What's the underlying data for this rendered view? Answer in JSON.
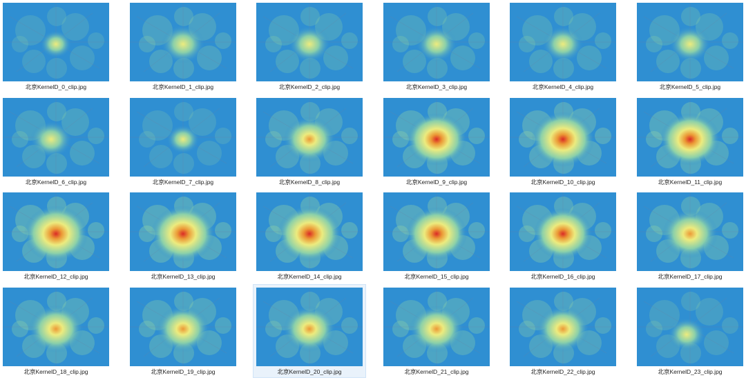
{
  "files": [
    {
      "name": "北京KernelD_0_clip.jpg",
      "heat": 0.15
    },
    {
      "name": "北京KernelD_1_clip.jpg",
      "heat": 0.45
    },
    {
      "name": "北京KernelD_2_clip.jpg",
      "heat": 0.4
    },
    {
      "name": "北京KernelD_3_clip.jpg",
      "heat": 0.38
    },
    {
      "name": "北京KernelD_4_clip.jpg",
      "heat": 0.38
    },
    {
      "name": "北京KernelD_5_clip.jpg",
      "heat": 0.38
    },
    {
      "name": "北京KernelD_6_clip.jpg",
      "heat": 0.4
    },
    {
      "name": "北京KernelD_7_clip.jpg",
      "heat": 0.18
    },
    {
      "name": "北京KernelD_8_clip.jpg",
      "heat": 0.65
    },
    {
      "name": "北京KernelD_9_clip.jpg",
      "heat": 0.85
    },
    {
      "name": "北京KernelD_10_clip.jpg",
      "heat": 0.92
    },
    {
      "name": "北京KernelD_11_clip.jpg",
      "heat": 0.85
    },
    {
      "name": "北京KernelD_12_clip.jpg",
      "heat": 0.95
    },
    {
      "name": "北京KernelD_13_clip.jpg",
      "heat": 0.95
    },
    {
      "name": "北京KernelD_14_clip.jpg",
      "heat": 0.95
    },
    {
      "name": "北京KernelD_15_clip.jpg",
      "heat": 0.88
    },
    {
      "name": "北京KernelD_16_clip.jpg",
      "heat": 0.82
    },
    {
      "name": "北京KernelD_17_clip.jpg",
      "heat": 0.75
    },
    {
      "name": "北京KernelD_18_clip.jpg",
      "heat": 0.72
    },
    {
      "name": "北京KernelD_19_clip.jpg",
      "heat": 0.68
    },
    {
      "name": "北京KernelD_20_clip.jpg",
      "heat": 0.66,
      "selected": true
    },
    {
      "name": "北京KernelD_21_clip.jpg",
      "heat": 0.7
    },
    {
      "name": "北京KernelD_22_clip.jpg",
      "heat": 0.66
    },
    {
      "name": "北京KernelD_23_clip.jpg",
      "heat": 0.3
    }
  ],
  "colors": {
    "background_blue": "#2f8fd2",
    "glow_outer": "#8fd3a8",
    "glow_mid": "#f6f07a",
    "glow_hot": "#f59a2e",
    "glow_core": "#e3261d",
    "selection": "#e9f2fb"
  }
}
